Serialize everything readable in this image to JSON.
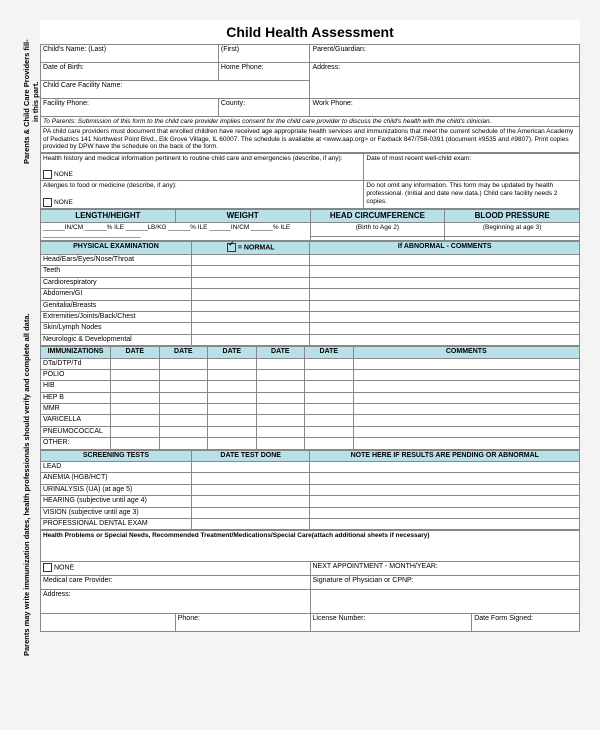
{
  "title": "Child Health Assessment",
  "sidebar": {
    "top": "Parents & Child Care Providers fill-in this part.",
    "bottom": "Parents may write immunization dates, health professionals should verify and complete all data."
  },
  "hdr": {
    "childLast": "Child's Name:  (Last)",
    "childFirst": "(First)",
    "pg": "Parent/Guardian:",
    "dob": "Date of Birth:",
    "homePh": "Home Phone:",
    "addr": "Address:",
    "facility": "Child Care Facility Name:",
    "facPh": "Facility Phone:",
    "county": "County:",
    "workPh": "Work Phone:"
  },
  "parentsNote": "To Parents:  Submission of this form to the child care provider implies consent for the child care provider to discuss the child's health with the child's clinician.",
  "paNote": "PA child care providers must document that enrolled children have received age appropriate health services and immunizations that meet the current schedule of the American Academy of Pediatrics 141 Northwest Point Blvd., Elk Grove Village, IL 60007. The schedule is available at <www.aap.org> or Faxback 847/758-0391 (document #9535 and #9807).  Print copies provided by DPW have the schedule on the back of the form.",
  "hist": {
    "label": "Health history and medical information pertinent to routine child care and emergencies (describe, if any):",
    "none": "NONE",
    "allergy": "Allergies to food or medicine (describe, if any):",
    "none2": "NONE",
    "recent": "Date of most recent well-child exam:",
    "omit": "Do not omit any information.  This form may be updated by health professional.  (Initial and date new data.)  Child care facility needs 2 copies."
  },
  "meas": {
    "len": "LENGTH/HEIGHT",
    "wt": "WEIGHT",
    "hc": "HEAD CIRCUMFERENCE",
    "bp": "BLOOD PRESSURE",
    "hcNote": "(Birth to Age 2)",
    "bpNote": "(Beginning at age 3)",
    "u": "______IN/CM   ______% ILE  ______LB/KG  ______% ILE  ______IN/CM       ______% ILE   ___________________________"
  },
  "phys": {
    "hdr": "PHYSICAL EXAMINATION",
    "normal": "= NORMAL",
    "abn": "If ABNORMAL - COMMENTS",
    "rows": [
      "Head/Ears/Eyes/Nose/Throat",
      "Teeth",
      "Cardiorespiratory",
      "Abdomen/GI",
      "Genitalia/Breasts",
      "Extremities/Joints/Back/Chest",
      "Skin/Lymph Nodes",
      "Neurologic & Developmental"
    ]
  },
  "imm": {
    "hdr": "IMMUNIZATIONS",
    "date": "DATE",
    "comments": "COMMENTS",
    "rows": [
      "DTa/DTP/Td",
      "POLIO",
      "HIB",
      "HEP B",
      "MMR",
      "VARICELLA",
      "PNEUMOCOCCAL",
      "OTHER:"
    ]
  },
  "scr": {
    "hdr1": "SCREENING TESTS",
    "hdr2": "DATE TEST DONE",
    "hdr3": "NOTE HERE IF RESULTS ARE PENDING OR ABNORMAL",
    "rows": [
      "LEAD",
      "ANEMIA (HGB/HCT)",
      "URINALYSIS (UA) (at age 5)",
      "HEARING (subjective until age 4)",
      "VISION (subjective until age 3)",
      "PROFESSIONAL DENTAL EXAM"
    ]
  },
  "ftr": {
    "hp": "Health Problems or Special Needs, Recommended Treatment/Medications/Special Care(attach additional sheets if necessary)",
    "none": "NONE",
    "next": "NEXT APPOINTMENT - MONTH/YEAR:",
    "prov": "Medical care Provider:",
    "sig": "Signature of Physician or CPNP:",
    "addr": "Address:",
    "phone": "Phone:",
    "lic": "License Number:",
    "signed": "Date Form Signed:"
  },
  "colors": {
    "header_bg": "#b8e0e8"
  }
}
